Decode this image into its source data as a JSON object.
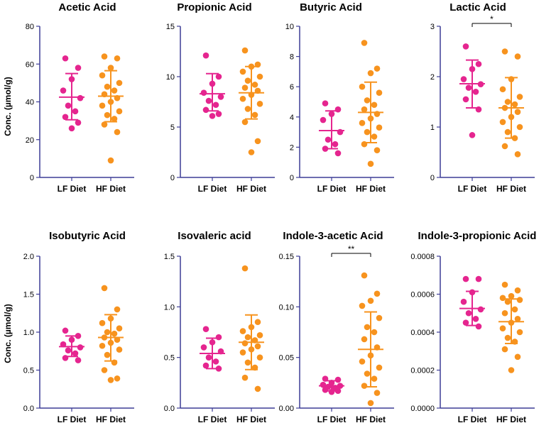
{
  "figure": {
    "y_axis_label": "Conc.  (µmol/g)",
    "colors": {
      "lf": "#e5258f",
      "hf": "#f7931e",
      "axis": "#3d3d96"
    }
  },
  "chart_data": [
    {
      "type": "scatter",
      "title": "Acetic Acid",
      "categories": [
        "LF Diet",
        "HF Diet"
      ],
      "ylim": [
        0,
        80
      ],
      "yticks": [
        "0",
        "20",
        "40",
        "60",
        "80"
      ],
      "series": [
        {
          "name": "LF Diet",
          "mean": 42.5,
          "sd_low": 30.5,
          "sd_high": 55,
          "values": [
            63,
            58,
            52,
            46,
            42,
            38,
            35,
            32,
            29,
            26
          ]
        },
        {
          "name": "HF Diet",
          "mean": 43,
          "sd_low": 29.5,
          "sd_high": 56.5,
          "values": [
            64,
            63,
            58,
            54,
            50,
            48,
            46,
            44,
            42,
            40,
            38,
            35,
            33,
            31,
            28,
            24,
            9
          ]
        }
      ],
      "significance": ""
    },
    {
      "type": "scatter",
      "title": "Propionic Acid",
      "categories": [
        "LF Diet",
        "HF Diet"
      ],
      "ylim": [
        0,
        15
      ],
      "yticks": [
        "0",
        "5",
        "10",
        "15"
      ],
      "series": [
        {
          "name": "LF Diet",
          "mean": 8.3,
          "sd_low": 6.6,
          "sd_high": 10.3,
          "values": [
            12.1,
            10.0,
            9.3,
            8.4,
            8.0,
            7.6,
            7.2,
            6.7,
            6.3,
            6.1
          ]
        },
        {
          "name": "HF Diet",
          "mean": 8.4,
          "sd_low": 5.8,
          "sd_high": 11.0,
          "values": [
            12.6,
            11.2,
            11.0,
            10.5,
            10.0,
            9.6,
            9.2,
            8.9,
            8.6,
            8.2,
            7.8,
            7.3,
            6.8,
            6.2,
            5.5,
            3.6,
            2.5
          ]
        }
      ],
      "significance": ""
    },
    {
      "type": "scatter",
      "title": "Butyric Acid",
      "categories": [
        "LF Diet",
        "HF Diet"
      ],
      "ylim": [
        0,
        10
      ],
      "yticks": [
        "0",
        "2",
        "4",
        "6",
        "8",
        "10"
      ],
      "series": [
        {
          "name": "LF Diet",
          "mean": 3.1,
          "sd_low": 1.9,
          "sd_high": 4.4,
          "values": [
            4.9,
            4.5,
            4.2,
            3.8,
            3.0,
            2.5,
            2.2,
            1.9,
            1.6
          ]
        },
        {
          "name": "HF Diet",
          "mean": 4.3,
          "sd_low": 2.3,
          "sd_high": 6.3,
          "values": [
            8.9,
            7.2,
            6.9,
            6.0,
            5.6,
            5.1,
            4.8,
            4.5,
            4.2,
            3.9,
            3.6,
            3.3,
            3.0,
            2.7,
            2.2,
            1.8,
            0.9
          ]
        }
      ],
      "significance": ""
    },
    {
      "type": "scatter",
      "title": "Lactic Acid",
      "categories": [
        "LF Diet",
        "HF Diet"
      ],
      "ylim": [
        0,
        3
      ],
      "yticks": [
        "0",
        "1",
        "2",
        "3"
      ],
      "series": [
        {
          "name": "LF Diet",
          "mean": 1.86,
          "sd_low": 1.38,
          "sd_high": 2.33,
          "values": [
            2.6,
            2.25,
            2.15,
            1.95,
            1.85,
            1.78,
            1.7,
            1.55,
            1.35,
            0.84
          ]
        },
        {
          "name": "HF Diet",
          "mean": 1.38,
          "sd_low": 0.78,
          "sd_high": 1.98,
          "values": [
            2.5,
            2.4,
            1.95,
            1.75,
            1.6,
            1.5,
            1.45,
            1.38,
            1.3,
            1.2,
            1.1,
            1.0,
            0.9,
            0.78,
            0.62,
            0.46
          ]
        }
      ],
      "significance": "*"
    },
    {
      "type": "scatter",
      "title": "Isobutyric Acid",
      "categories": [
        "LF Diet",
        "HF Diet"
      ],
      "ylim": [
        0,
        2.0
      ],
      "yticks": [
        "0.0",
        "0.5",
        "1.0",
        "1.5",
        "2.0"
      ],
      "series": [
        {
          "name": "LF Diet",
          "mean": 0.81,
          "sd_low": 0.68,
          "sd_high": 0.95,
          "values": [
            1.02,
            0.95,
            0.9,
            0.84,
            0.8,
            0.76,
            0.72,
            0.66,
            0.63
          ]
        },
        {
          "name": "HF Diet",
          "mean": 0.93,
          "sd_low": 0.62,
          "sd_high": 1.23,
          "values": [
            1.58,
            1.3,
            1.18,
            1.12,
            1.05,
            1.0,
            0.98,
            0.93,
            0.9,
            0.86,
            0.82,
            0.77,
            0.7,
            0.6,
            0.5,
            0.39,
            0.37
          ]
        }
      ],
      "significance": ""
    },
    {
      "type": "scatter",
      "title": "Isovaleric acid",
      "categories": [
        "LF Diet",
        "HF Diet"
      ],
      "ylim": [
        0,
        1.5
      ],
      "yticks": [
        "0.0",
        "0.5",
        "1.0",
        "1.5"
      ],
      "series": [
        {
          "name": "LF Diet",
          "mean": 0.54,
          "sd_low": 0.39,
          "sd_high": 0.69,
          "values": [
            0.78,
            0.7,
            0.65,
            0.6,
            0.56,
            0.5,
            0.46,
            0.42,
            0.39
          ]
        },
        {
          "name": "HF Diet",
          "mean": 0.65,
          "sd_low": 0.38,
          "sd_high": 0.92,
          "values": [
            1.38,
            0.85,
            0.8,
            0.76,
            0.72,
            0.7,
            0.67,
            0.64,
            0.61,
            0.58,
            0.55,
            0.5,
            0.45,
            0.4,
            0.3,
            0.19
          ]
        }
      ],
      "significance": ""
    },
    {
      "type": "scatter",
      "title": "Indole-3-acetic Acid",
      "categories": [
        "LF Diet",
        "HF Diet"
      ],
      "ylim": [
        0,
        0.15
      ],
      "yticks": [
        "0.00",
        "0.05",
        "0.10",
        "0.15"
      ],
      "series": [
        {
          "name": "LF Diet",
          "mean": 0.022,
          "sd_low": 0.017,
          "sd_high": 0.027,
          "values": [
            0.029,
            0.028,
            0.025,
            0.023,
            0.022,
            0.021,
            0.02,
            0.018,
            0.017,
            0.016
          ]
        },
        {
          "name": "HF Diet",
          "mean": 0.058,
          "sd_low": 0.021,
          "sd_high": 0.095,
          "values": [
            0.131,
            0.113,
            0.106,
            0.101,
            0.089,
            0.08,
            0.075,
            0.068,
            0.06,
            0.052,
            0.046,
            0.04,
            0.034,
            0.029,
            0.022,
            0.015,
            0.005
          ]
        }
      ],
      "significance": "**"
    },
    {
      "type": "scatter",
      "title": "Indole-3-propionic Acid",
      "categories": [
        "LF Diet",
        "HF Diet"
      ],
      "ylim": [
        0,
        0.0008
      ],
      "yticks": [
        "0.0000",
        "0.0002",
        "0.0004",
        "0.0006",
        "0.0008"
      ],
      "series": [
        {
          "name": "LF Diet",
          "mean": 0.000525,
          "sd_low": 0.000435,
          "sd_high": 0.000615,
          "values": [
            0.00068,
            0.00068,
            0.00061,
            0.00056,
            0.00052,
            0.0005,
            0.00047,
            0.00045,
            0.00043
          ]
        },
        {
          "name": "HF Diet",
          "mean": 0.000455,
          "sd_low": 0.00034,
          "sd_high": 0.000575,
          "values": [
            0.00065,
            0.00062,
            0.00059,
            0.00058,
            0.00057,
            0.00056,
            0.00052,
            0.0005,
            0.00047,
            0.00045,
            0.00042,
            0.0004,
            0.00037,
            0.00035,
            0.00031,
            0.00027,
            0.0002
          ]
        }
      ],
      "significance": ""
    }
  ]
}
